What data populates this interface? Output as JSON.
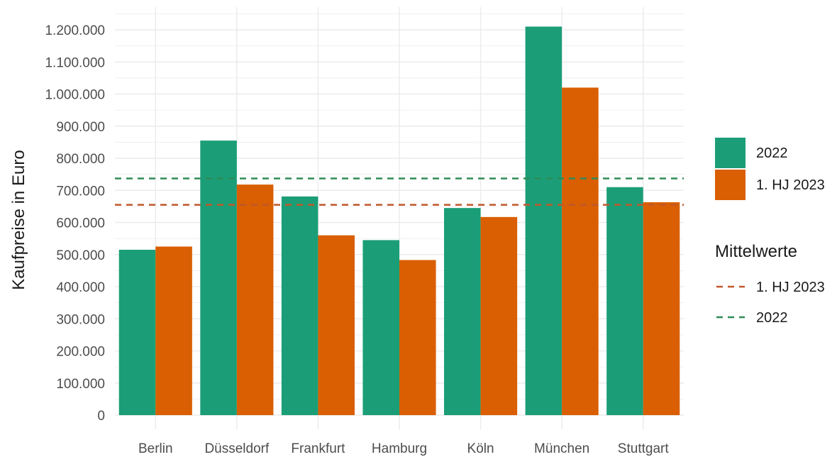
{
  "chart_data": {
    "type": "bar",
    "categories": [
      "Berlin",
      "Düsseldorf",
      "Frankfurt",
      "Hamburg",
      "Köln",
      "München",
      "Stuttgart"
    ],
    "series": [
      {
        "name": "2022",
        "values": [
          515000,
          855000,
          681000,
          545000,
          645000,
          1210000,
          710000
        ],
        "color": "#1b9e77"
      },
      {
        "name": "1. HJ 2023",
        "values": [
          525000,
          718000,
          560000,
          483000,
          617000,
          1020000,
          663000
        ],
        "color": "#d95f02"
      }
    ],
    "reference_lines": {
      "title": "Mittelwerte",
      "lines": [
        {
          "name": "1. HJ 2023",
          "value": 655000,
          "color": "#c0582a",
          "style": "dashed"
        },
        {
          "name": "2022",
          "value": 737000,
          "color": "#2e8b57",
          "style": "dashed"
        }
      ]
    },
    "title": "",
    "xlabel": "",
    "ylabel": "Kaufpreise in Euro",
    "ylim": [
      0,
      1250000
    ],
    "yticks": [
      0,
      100000,
      200000,
      300000,
      400000,
      500000,
      600000,
      700000,
      800000,
      900000,
      1000000,
      1100000,
      1200000
    ],
    "ytick_labels": [
      "0",
      "100.000",
      "200.000",
      "300.000",
      "400.000",
      "500.000",
      "600.000",
      "700.000",
      "800.000",
      "900.000",
      "1.000.000",
      "1.100.000",
      "1.200.000"
    ],
    "grid": true,
    "legend_position": "right"
  }
}
